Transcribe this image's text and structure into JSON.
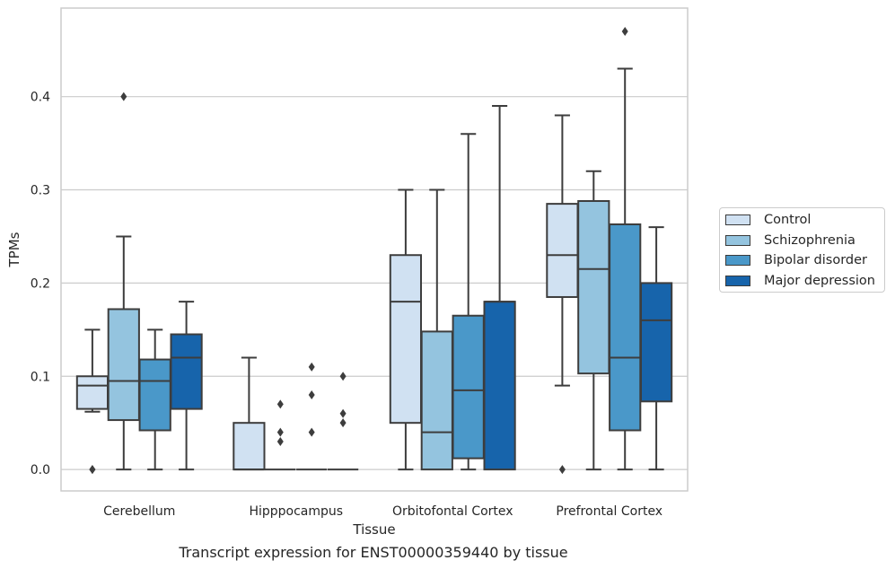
{
  "chart_data": {
    "type": "box",
    "xlabel": "Tissue",
    "ylabel": "TPMs",
    "caption": "Transcript expression for ENST00000359440 by tissue",
    "ylim": [
      -0.023,
      0.495
    ],
    "yticks": [
      0.0,
      0.1,
      0.2,
      0.3,
      0.4
    ],
    "ytick_labels": [
      "0.0",
      "0.1",
      "0.2",
      "0.3",
      "0.4"
    ],
    "grid": "horizontal",
    "legend_position": "right",
    "categories": [
      "Cerebellum",
      "Hipppocampus",
      "Orbitofontal Cortex",
      "Prefrontal Cortex"
    ],
    "series": [
      {
        "name": "Control",
        "color": "#d0e1f2",
        "boxes": [
          {
            "whislo": 0.062,
            "q1": 0.065,
            "med": 0.09,
            "q3": 0.1,
            "whishi": 0.15,
            "fliers": [
              0.0,
              0.0
            ]
          },
          {
            "whislo": 0.0,
            "q1": 0.0,
            "med": 0.0,
            "q3": 0.05,
            "whishi": 0.12,
            "fliers": []
          },
          {
            "whislo": 0.0,
            "q1": 0.05,
            "med": 0.18,
            "q3": 0.23,
            "whishi": 0.3,
            "fliers": []
          },
          {
            "whislo": 0.09,
            "q1": 0.185,
            "med": 0.23,
            "q3": 0.285,
            "whishi": 0.38,
            "fliers": [
              0.0
            ]
          }
        ]
      },
      {
        "name": "Schizophrenia",
        "color": "#94c4df",
        "boxes": [
          {
            "whislo": 0.0,
            "q1": 0.053,
            "med": 0.095,
            "q3": 0.172,
            "whishi": 0.25,
            "fliers": [
              0.4
            ]
          },
          {
            "whislo": 0.0,
            "q1": 0.0,
            "med": 0.0,
            "q3": 0.0,
            "whishi": 0.0,
            "fliers": [
              0.03,
              0.04,
              0.07
            ]
          },
          {
            "whislo": 0.0,
            "q1": 0.0,
            "med": 0.04,
            "q3": 0.148,
            "whishi": 0.3,
            "fliers": []
          },
          {
            "whislo": 0.0,
            "q1": 0.103,
            "med": 0.215,
            "q3": 0.288,
            "whishi": 0.32,
            "fliers": []
          }
        ]
      },
      {
        "name": "Bipolar disorder",
        "color": "#4a98c9",
        "boxes": [
          {
            "whislo": 0.0,
            "q1": 0.042,
            "med": 0.095,
            "q3": 0.118,
            "whishi": 0.15,
            "fliers": []
          },
          {
            "whislo": 0.0,
            "q1": 0.0,
            "med": 0.0,
            "q3": 0.0,
            "whishi": 0.0,
            "fliers": [
              0.04,
              0.08,
              0.11
            ]
          },
          {
            "whislo": 0.0,
            "q1": 0.012,
            "med": 0.085,
            "q3": 0.165,
            "whishi": 0.36,
            "fliers": []
          },
          {
            "whislo": 0.0,
            "q1": 0.042,
            "med": 0.12,
            "q3": 0.263,
            "whishi": 0.43,
            "fliers": [
              0.47
            ]
          }
        ]
      },
      {
        "name": "Major depression",
        "color": "#1764ab",
        "boxes": [
          {
            "whislo": 0.0,
            "q1": 0.065,
            "med": 0.12,
            "q3": 0.145,
            "whishi": 0.18,
            "fliers": []
          },
          {
            "whislo": 0.0,
            "q1": 0.0,
            "med": 0.0,
            "q3": 0.0,
            "whishi": 0.0,
            "fliers": [
              0.05,
              0.06,
              0.1
            ]
          },
          {
            "whislo": 0.0,
            "q1": 0.0,
            "med": 0.18,
            "q3": 0.18,
            "whishi": 0.39,
            "fliers": []
          },
          {
            "whislo": 0.0,
            "q1": 0.073,
            "med": 0.16,
            "q3": 0.2,
            "whishi": 0.26,
            "fliers": []
          }
        ]
      }
    ]
  }
}
